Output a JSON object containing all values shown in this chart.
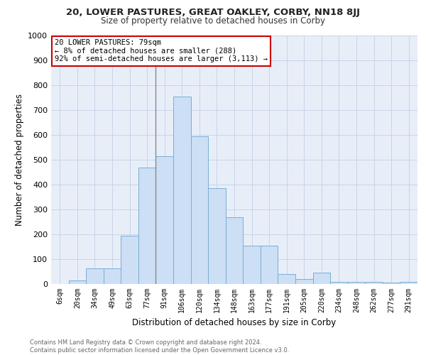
{
  "title": "20, LOWER PASTURES, GREAT OAKLEY, CORBY, NN18 8JJ",
  "subtitle": "Size of property relative to detached houses in Corby",
  "xlabel": "Distribution of detached houses by size in Corby",
  "ylabel": "Number of detached properties",
  "categories": [
    "6sqm",
    "20sqm",
    "34sqm",
    "49sqm",
    "63sqm",
    "77sqm",
    "91sqm",
    "106sqm",
    "120sqm",
    "134sqm",
    "148sqm",
    "163sqm",
    "177sqm",
    "191sqm",
    "205sqm",
    "220sqm",
    "234sqm",
    "248sqm",
    "262sqm",
    "277sqm",
    "291sqm"
  ],
  "values": [
    0,
    15,
    62,
    62,
    195,
    470,
    515,
    755,
    595,
    385,
    270,
    155,
    155,
    40,
    20,
    45,
    10,
    10,
    8,
    5,
    8
  ],
  "bar_color": "#ccdff5",
  "bar_edge_color": "#7aafd4",
  "annotation_text_line1": "20 LOWER PASTURES: 79sqm",
  "annotation_text_line2": "← 8% of detached houses are smaller (288)",
  "annotation_text_line3": "92% of semi-detached houses are larger (3,113) →",
  "annotation_box_color": "#ffffff",
  "annotation_box_edge_color": "#cc0000",
  "vline_color": "#888888",
  "grid_color": "#c8d4e8",
  "bg_color": "#e8eef8",
  "footer_line1": "Contains HM Land Registry data © Crown copyright and database right 2024.",
  "footer_line2": "Contains public sector information licensed under the Open Government Licence v3.0.",
  "ylim": [
    0,
    1000
  ],
  "yticks": [
    0,
    100,
    200,
    300,
    400,
    500,
    600,
    700,
    800,
    900,
    1000
  ]
}
